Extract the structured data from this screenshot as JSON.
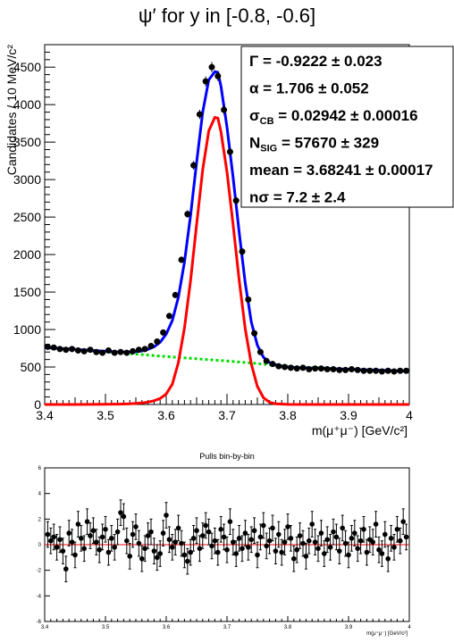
{
  "title": "ψ′ for y in [-0.8, -0.6]",
  "main_plot": {
    "xlabel": "m(μ⁺μ⁻) [GeV/c²]",
    "ylabel": "Candidates / 10 MeV/c²",
    "xlim": [
      3.4,
      4.0
    ],
    "ylim": [
      0,
      4800
    ],
    "xticks": [
      "3.4",
      "3.5",
      "3.6",
      "3.7",
      "3.8",
      "3.9",
      "4"
    ],
    "yticks": [
      "0",
      "500",
      "1000",
      "1500",
      "2000",
      "2500",
      "3000",
      "3500",
      "4000",
      "4500"
    ],
    "stats": [
      {
        "name": "Γ",
        "value": "= -0.9222 ± 0.023"
      },
      {
        "name": "α",
        "value": "=  1.706 ± 0.052"
      },
      {
        "name": "σ",
        "sub": "CB",
        "value": "=  0.02942 ± 0.00016"
      },
      {
        "name": "N",
        "sub": "SIG",
        "value": "=  57670 ± 329"
      },
      {
        "name": "mean",
        "value": "=  3.68241 ± 0.00017"
      },
      {
        "name": "nσ",
        "value": "=  7.2 ± 2.4"
      }
    ]
  },
  "pull_plot": {
    "title": "Pulls bin-by-bin",
    "xlabel": "m(μ⁺μ⁻) [GeV/c²]",
    "xlim": [
      3.4,
      4.0
    ],
    "ylim": [
      -6,
      6
    ],
    "xticks": [
      "3.4",
      "3.5",
      "3.6",
      "3.7",
      "3.8",
      "3.9",
      "4"
    ],
    "yticks": [
      "-6",
      "-4",
      "-2",
      "0",
      "2",
      "4",
      "6"
    ]
  },
  "colors": {
    "total_fit": "#0000ff",
    "signal": "#ff0000",
    "background": "#00dd00",
    "data": "#000000",
    "pull_zero_line": "#ff0000"
  },
  "chart_data": [
    {
      "type": "scatter",
      "title": "ψ′ for y in [-0.8, -0.6]",
      "xlabel": "m(μ⁺μ⁻) [GeV/c²]",
      "ylabel": "Candidates / 10 MeV/c²",
      "xlim": [
        3.4,
        4.0
      ],
      "ylim": [
        0,
        4800
      ],
      "series": [
        {
          "kind": "data points",
          "x": [
            3.405,
            3.415,
            3.425,
            3.435,
            3.445,
            3.455,
            3.465,
            3.475,
            3.485,
            3.495,
            3.505,
            3.515,
            3.525,
            3.535,
            3.545,
            3.555,
            3.565,
            3.575,
            3.585,
            3.595,
            3.605,
            3.615,
            3.625,
            3.635,
            3.645,
            3.655,
            3.665,
            3.675,
            3.685,
            3.695,
            3.705,
            3.715,
            3.725,
            3.735,
            3.745,
            3.755,
            3.765,
            3.775,
            3.785,
            3.795,
            3.805,
            3.815,
            3.825,
            3.835,
            3.845,
            3.855,
            3.865,
            3.875,
            3.885,
            3.895,
            3.905,
            3.915,
            3.925,
            3.935,
            3.945,
            3.955,
            3.965,
            3.975,
            3.985,
            3.995
          ],
          "y": [
            770,
            760,
            740,
            730,
            740,
            720,
            710,
            730,
            700,
            690,
            720,
            690,
            700,
            690,
            710,
            730,
            740,
            780,
            840,
            960,
            1180,
            1460,
            1930,
            2540,
            3190,
            3870,
            4310,
            4500,
            4380,
            3930,
            3370,
            2720,
            2040,
            1400,
            950,
            700,
            580,
            540,
            510,
            500,
            490,
            480,
            490,
            470,
            480,
            480,
            470,
            470,
            460,
            460,
            470,
            460,
            450,
            450,
            450,
            440,
            450,
            440,
            450,
            450
          ]
        },
        {
          "name": "",
          "kind": "total fit",
          "x": [
            3.4,
            3.42,
            3.44,
            3.46,
            3.48,
            3.5,
            3.52,
            3.54,
            3.55,
            3.56,
            3.57,
            3.58,
            3.59,
            3.6,
            3.61,
            3.62,
            3.63,
            3.64,
            3.65,
            3.66,
            3.67,
            3.68,
            3.685,
            3.69,
            3.7,
            3.71,
            3.72,
            3.73,
            3.74,
            3.75,
            3.76,
            3.77,
            3.78,
            3.79,
            3.8,
            3.82,
            3.84,
            3.86,
            3.88,
            3.9,
            3.92,
            3.94,
            3.96,
            3.98,
            4.0
          ],
          "y": [
            760,
            750,
            740,
            730,
            720,
            710,
            700,
            700,
            705,
            715,
            735,
            770,
            830,
            940,
            1120,
            1430,
            1900,
            2520,
            3230,
            3900,
            4330,
            4440,
            4430,
            4250,
            3700,
            3030,
            2300,
            1620,
            1100,
            790,
            630,
            560,
            530,
            510,
            500,
            490,
            485,
            480,
            475,
            470,
            465,
            460,
            455,
            450,
            445
          ]
        },
        {
          "name": "",
          "kind": "signal",
          "x": [
            3.4,
            3.45,
            3.5,
            3.52,
            3.54,
            3.56,
            3.57,
            3.58,
            3.59,
            3.6,
            3.61,
            3.62,
            3.63,
            3.64,
            3.65,
            3.66,
            3.67,
            3.68,
            3.685,
            3.69,
            3.7,
            3.71,
            3.72,
            3.73,
            3.74,
            3.75,
            3.76,
            3.77,
            3.78,
            3.8,
            3.85,
            3.9,
            4.0
          ],
          "y": [
            0,
            0,
            2,
            5,
            10,
            20,
            32,
            50,
            80,
            140,
            270,
            560,
            1020,
            1650,
            2400,
            3130,
            3650,
            3830,
            3820,
            3640,
            3100,
            2400,
            1660,
            1010,
            540,
            240,
            90,
            28,
            8,
            1,
            0,
            0,
            0
          ]
        },
        {
          "name": "",
          "kind": "background",
          "x": [
            3.4,
            3.45,
            3.5,
            3.55,
            3.6,
            3.65,
            3.7,
            3.75,
            3.8,
            3.85,
            3.9,
            3.95,
            4.0
          ],
          "y": [
            760,
            735,
            705,
            672,
            640,
            610,
            580,
            545,
            510,
            490,
            470,
            455,
            440
          ]
        }
      ]
    },
    {
      "type": "scatter",
      "title": "Pulls bin-by-bin",
      "xlabel": "m(μ⁺μ⁻) [GeV/c²]",
      "xlim": [
        3.4,
        4.0
      ],
      "ylim": [
        -6,
        6
      ],
      "series": [
        {
          "kind": "pulls",
          "x": [
            3.405,
            3.41,
            3.415,
            3.42,
            3.425,
            3.43,
            3.435,
            3.44,
            3.445,
            3.45,
            3.455,
            3.46,
            3.465,
            3.47,
            3.475,
            3.48,
            3.485,
            3.49,
            3.495,
            3.5,
            3.505,
            3.51,
            3.515,
            3.52,
            3.525,
            3.53,
            3.535,
            3.54,
            3.545,
            3.55,
            3.555,
            3.56,
            3.565,
            3.57,
            3.575,
            3.58,
            3.585,
            3.59,
            3.595,
            3.6,
            3.605,
            3.61,
            3.615,
            3.62,
            3.625,
            3.63,
            3.635,
            3.64,
            3.645,
            3.65,
            3.655,
            3.66,
            3.665,
            3.67,
            3.675,
            3.68,
            3.685,
            3.69,
            3.695,
            3.7,
            3.705,
            3.71,
            3.715,
            3.72,
            3.725,
            3.73,
            3.735,
            3.74,
            3.745,
            3.75,
            3.755,
            3.76,
            3.765,
            3.77,
            3.775,
            3.78,
            3.785,
            3.79,
            3.795,
            3.8,
            3.805,
            3.81,
            3.815,
            3.82,
            3.825,
            3.83,
            3.835,
            3.84,
            3.845,
            3.85,
            3.855,
            3.86,
            3.865,
            3.87,
            3.875,
            3.88,
            3.885,
            3.89,
            3.895,
            3.9,
            3.905,
            3.91,
            3.915,
            3.92,
            3.925,
            3.93,
            3.935,
            3.94,
            3.945,
            3.95,
            3.955,
            3.96,
            3.965,
            3.97,
            3.975,
            3.98,
            3.985,
            3.99,
            3.995
          ],
          "y": [
            0.8,
            0.3,
            0.6,
            -0.2,
            0.4,
            -0.5,
            -1.9,
            0.9,
            0.2,
            -0.8,
            1.6,
            0.5,
            -0.3,
            1.8,
            0.7,
            1.1,
            0.2,
            -0.4,
            0.6,
            1.2,
            -0.6,
            0.5,
            -0.2,
            1.0,
            2.5,
            2.2,
            0.3,
            -0.9,
            0.8,
            1.4,
            0.1,
            -1.1,
            -0.3,
            0.7,
            1.0,
            -0.5,
            -1.0,
            -0.7,
            0.9,
            2.3,
            0.4,
            -0.2,
            0.2,
            1.3,
            0.1,
            -0.8,
            -1.3,
            -0.6,
            0.5,
            1.1,
            -0.3,
            0.7,
            1.5,
            1.0,
            -0.1,
            0.3,
            -0.6,
            1.2,
            0.6,
            -0.4,
            1.8,
            0.2,
            -0.7,
            0.5,
            -0.3,
            0.9,
            -0.2,
            0.4,
            1.1,
            -0.8,
            0.6,
            1.5,
            -0.1,
            0.3,
            1.3,
            -0.5,
            0.8,
            -0.6,
            0.2,
            1.4,
            0.5,
            -1.1,
            -0.4,
            0.7,
            0.1,
            -0.9,
            0.3,
            1.6,
            0.2,
            -0.3,
            0.9,
            -0.7,
            0.4,
            -0.2,
            1.0,
            0.6,
            -0.5,
            1.3,
            0.1,
            -0.8,
            0.5,
            0.9,
            -0.3,
            0.3,
            1.2,
            -0.6,
            0.4,
            0.2,
            1.6,
            -0.4,
            -0.7,
            0.8,
            -1.1,
            0.5,
            -0.2,
            1.2,
            0.3,
            1.8,
            0.6
          ]
        }
      ]
    }
  ]
}
